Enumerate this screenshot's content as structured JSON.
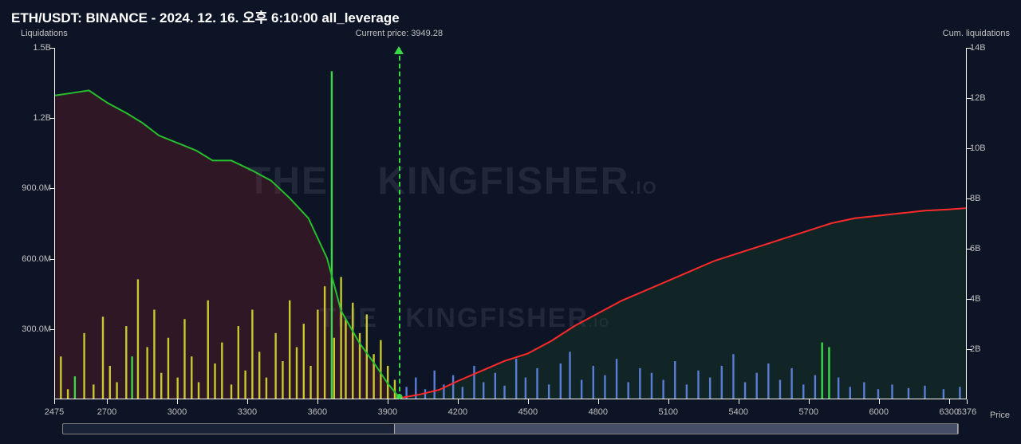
{
  "title": "ETH/USDT: BINANCE - 2024. 12. 16. 오후 6:10:00 all_leverage",
  "axis_labels": {
    "y_left": "Liquidations",
    "y_right": "Cum. liquidations",
    "x": "Price"
  },
  "current_price": {
    "value": 3949.28,
    "label": "Current price: 3949.28"
  },
  "watermark_main": "THE",
  "watermark_sub": "KINGFISHER",
  "watermark_suffix": ".IO",
  "colors": {
    "bg": "#0d1426",
    "axis": "#ffffff",
    "text": "#c0c0c0",
    "long_line": "#25c02c",
    "long_fill": "rgba(120,30,40,0.32)",
    "short_line": "#ff2a2a",
    "short_fill": "rgba(25,70,40,0.35)",
    "bar_yellow": "#c9c92f",
    "bar_green": "#3dd648",
    "bar_blue": "#5a7dd6",
    "current_line": "#3dd648"
  },
  "chart": {
    "x_range": [
      2475,
      6376
    ],
    "y1_range": [
      0,
      1500
    ],
    "y2_range": [
      0,
      14
    ],
    "y1_ticks": [
      {
        "v": 1500,
        "l": "1.5B"
      },
      {
        "v": 1200,
        "l": "1.2B"
      },
      {
        "v": 900,
        "l": "900.0M"
      },
      {
        "v": 600,
        "l": "600.0M"
      },
      {
        "v": 300,
        "l": "300.0M"
      }
    ],
    "y2_ticks": [
      {
        "v": 14,
        "l": "14B"
      },
      {
        "v": 12,
        "l": "12B"
      },
      {
        "v": 10,
        "l": "10B"
      },
      {
        "v": 8,
        "l": "8B"
      },
      {
        "v": 6,
        "l": "6B"
      },
      {
        "v": 4,
        "l": "4B"
      },
      {
        "v": 2,
        "l": "2B"
      }
    ],
    "x_ticks": [
      2475,
      2700,
      3000,
      3300,
      3600,
      3900,
      4200,
      4500,
      4800,
      5100,
      5400,
      5700,
      6000,
      6300,
      6376
    ],
    "cum_long": [
      [
        2475,
        12.1
      ],
      [
        2550,
        12.2
      ],
      [
        2620,
        12.3
      ],
      [
        2700,
        11.8
      ],
      [
        2780,
        11.4
      ],
      [
        2850,
        11.0
      ],
      [
        2920,
        10.5
      ],
      [
        3000,
        10.2
      ],
      [
        3080,
        9.9
      ],
      [
        3150,
        9.5
      ],
      [
        3230,
        9.5
      ],
      [
        3320,
        9.1
      ],
      [
        3400,
        8.7
      ],
      [
        3480,
        8.0
      ],
      [
        3560,
        7.2
      ],
      [
        3640,
        5.6
      ],
      [
        3700,
        3.5
      ],
      [
        3780,
        2.2
      ],
      [
        3850,
        1.3
      ],
      [
        3900,
        0.6
      ],
      [
        3949,
        0.05
      ]
    ],
    "cum_short": [
      [
        3949,
        0.02
      ],
      [
        4030,
        0.15
      ],
      [
        4120,
        0.35
      ],
      [
        4200,
        0.7
      ],
      [
        4300,
        1.1
      ],
      [
        4400,
        1.5
      ],
      [
        4500,
        1.8
      ],
      [
        4600,
        2.3
      ],
      [
        4700,
        2.9
      ],
      [
        4800,
        3.4
      ],
      [
        4900,
        3.9
      ],
      [
        5000,
        4.3
      ],
      [
        5100,
        4.7
      ],
      [
        5200,
        5.1
      ],
      [
        5300,
        5.5
      ],
      [
        5400,
        5.8
      ],
      [
        5500,
        6.1
      ],
      [
        5600,
        6.4
      ],
      [
        5700,
        6.7
      ],
      [
        5800,
        7.0
      ],
      [
        5900,
        7.2
      ],
      [
        6000,
        7.3
      ],
      [
        6100,
        7.4
      ],
      [
        6200,
        7.5
      ],
      [
        6300,
        7.55
      ],
      [
        6376,
        7.6
      ]
    ],
    "bars": [
      {
        "x": 2500,
        "v": 180,
        "c": "y"
      },
      {
        "x": 2530,
        "v": 40,
        "c": "y"
      },
      {
        "x": 2560,
        "v": 95,
        "c": "g"
      },
      {
        "x": 2600,
        "v": 280,
        "c": "y"
      },
      {
        "x": 2640,
        "v": 60,
        "c": "y"
      },
      {
        "x": 2680,
        "v": 350,
        "c": "y"
      },
      {
        "x": 2710,
        "v": 140,
        "c": "y"
      },
      {
        "x": 2740,
        "v": 70,
        "c": "y"
      },
      {
        "x": 2780,
        "v": 310,
        "c": "y"
      },
      {
        "x": 2805,
        "v": 180,
        "c": "g"
      },
      {
        "x": 2830,
        "v": 510,
        "c": "y"
      },
      {
        "x": 2870,
        "v": 220,
        "c": "y"
      },
      {
        "x": 2900,
        "v": 380,
        "c": "y"
      },
      {
        "x": 2930,
        "v": 110,
        "c": "y"
      },
      {
        "x": 2960,
        "v": 260,
        "c": "y"
      },
      {
        "x": 3000,
        "v": 90,
        "c": "y"
      },
      {
        "x": 3030,
        "v": 340,
        "c": "y"
      },
      {
        "x": 3060,
        "v": 180,
        "c": "y"
      },
      {
        "x": 3090,
        "v": 70,
        "c": "y"
      },
      {
        "x": 3130,
        "v": 420,
        "c": "y"
      },
      {
        "x": 3160,
        "v": 150,
        "c": "y"
      },
      {
        "x": 3190,
        "v": 240,
        "c": "y"
      },
      {
        "x": 3230,
        "v": 60,
        "c": "y"
      },
      {
        "x": 3260,
        "v": 310,
        "c": "y"
      },
      {
        "x": 3290,
        "v": 120,
        "c": "y"
      },
      {
        "x": 3320,
        "v": 380,
        "c": "y"
      },
      {
        "x": 3350,
        "v": 200,
        "c": "y"
      },
      {
        "x": 3380,
        "v": 90,
        "c": "y"
      },
      {
        "x": 3420,
        "v": 280,
        "c": "y"
      },
      {
        "x": 3450,
        "v": 160,
        "c": "y"
      },
      {
        "x": 3480,
        "v": 420,
        "c": "y"
      },
      {
        "x": 3510,
        "v": 220,
        "c": "y"
      },
      {
        "x": 3540,
        "v": 320,
        "c": "y"
      },
      {
        "x": 3570,
        "v": 140,
        "c": "y"
      },
      {
        "x": 3600,
        "v": 380,
        "c": "y"
      },
      {
        "x": 3630,
        "v": 480,
        "c": "y"
      },
      {
        "x": 3660,
        "v": 1400,
        "c": "g"
      },
      {
        "x": 3670,
        "v": 260,
        "c": "y"
      },
      {
        "x": 3700,
        "v": 520,
        "c": "y"
      },
      {
        "x": 3720,
        "v": 340,
        "c": "y"
      },
      {
        "x": 3750,
        "v": 410,
        "c": "y"
      },
      {
        "x": 3780,
        "v": 280,
        "c": "y"
      },
      {
        "x": 3810,
        "v": 360,
        "c": "y"
      },
      {
        "x": 3840,
        "v": 190,
        "c": "y"
      },
      {
        "x": 3870,
        "v": 250,
        "c": "y"
      },
      {
        "x": 3900,
        "v": 140,
        "c": "y"
      },
      {
        "x": 3930,
        "v": 80,
        "c": "y"
      },
      {
        "x": 3980,
        "v": 50,
        "c": "b"
      },
      {
        "x": 4020,
        "v": 90,
        "c": "b"
      },
      {
        "x": 4060,
        "v": 40,
        "c": "b"
      },
      {
        "x": 4100,
        "v": 120,
        "c": "b"
      },
      {
        "x": 4140,
        "v": 60,
        "c": "b"
      },
      {
        "x": 4180,
        "v": 100,
        "c": "b"
      },
      {
        "x": 4220,
        "v": 50,
        "c": "b"
      },
      {
        "x": 4270,
        "v": 140,
        "c": "b"
      },
      {
        "x": 4310,
        "v": 70,
        "c": "b"
      },
      {
        "x": 4360,
        "v": 110,
        "c": "b"
      },
      {
        "x": 4400,
        "v": 55,
        "c": "b"
      },
      {
        "x": 4450,
        "v": 170,
        "c": "b"
      },
      {
        "x": 4490,
        "v": 90,
        "c": "b"
      },
      {
        "x": 4540,
        "v": 130,
        "c": "b"
      },
      {
        "x": 4590,
        "v": 60,
        "c": "b"
      },
      {
        "x": 4640,
        "v": 150,
        "c": "b"
      },
      {
        "x": 4680,
        "v": 200,
        "c": "b"
      },
      {
        "x": 4730,
        "v": 80,
        "c": "b"
      },
      {
        "x": 4780,
        "v": 140,
        "c": "b"
      },
      {
        "x": 4830,
        "v": 100,
        "c": "b"
      },
      {
        "x": 4880,
        "v": 170,
        "c": "b"
      },
      {
        "x": 4930,
        "v": 70,
        "c": "b"
      },
      {
        "x": 4980,
        "v": 130,
        "c": "b"
      },
      {
        "x": 5030,
        "v": 110,
        "c": "b"
      },
      {
        "x": 5080,
        "v": 80,
        "c": "b"
      },
      {
        "x": 5130,
        "v": 160,
        "c": "b"
      },
      {
        "x": 5180,
        "v": 60,
        "c": "b"
      },
      {
        "x": 5230,
        "v": 120,
        "c": "b"
      },
      {
        "x": 5280,
        "v": 90,
        "c": "b"
      },
      {
        "x": 5330,
        "v": 140,
        "c": "b"
      },
      {
        "x": 5380,
        "v": 190,
        "c": "b"
      },
      {
        "x": 5430,
        "v": 70,
        "c": "b"
      },
      {
        "x": 5480,
        "v": 110,
        "c": "b"
      },
      {
        "x": 5530,
        "v": 150,
        "c": "b"
      },
      {
        "x": 5580,
        "v": 80,
        "c": "b"
      },
      {
        "x": 5630,
        "v": 130,
        "c": "b"
      },
      {
        "x": 5680,
        "v": 60,
        "c": "b"
      },
      {
        "x": 5730,
        "v": 100,
        "c": "b"
      },
      {
        "x": 5760,
        "v": 240,
        "c": "g"
      },
      {
        "x": 5790,
        "v": 220,
        "c": "g"
      },
      {
        "x": 5830,
        "v": 90,
        "c": "b"
      },
      {
        "x": 5880,
        "v": 50,
        "c": "b"
      },
      {
        "x": 5940,
        "v": 70,
        "c": "b"
      },
      {
        "x": 6000,
        "v": 40,
        "c": "b"
      },
      {
        "x": 6060,
        "v": 60,
        "c": "b"
      },
      {
        "x": 6130,
        "v": 45,
        "c": "b"
      },
      {
        "x": 6200,
        "v": 55,
        "c": "b"
      },
      {
        "x": 6280,
        "v": 40,
        "c": "b"
      },
      {
        "x": 6350,
        "v": 50,
        "c": "b"
      }
    ]
  },
  "slider": {
    "start_pct": 37,
    "end_pct": 100
  }
}
